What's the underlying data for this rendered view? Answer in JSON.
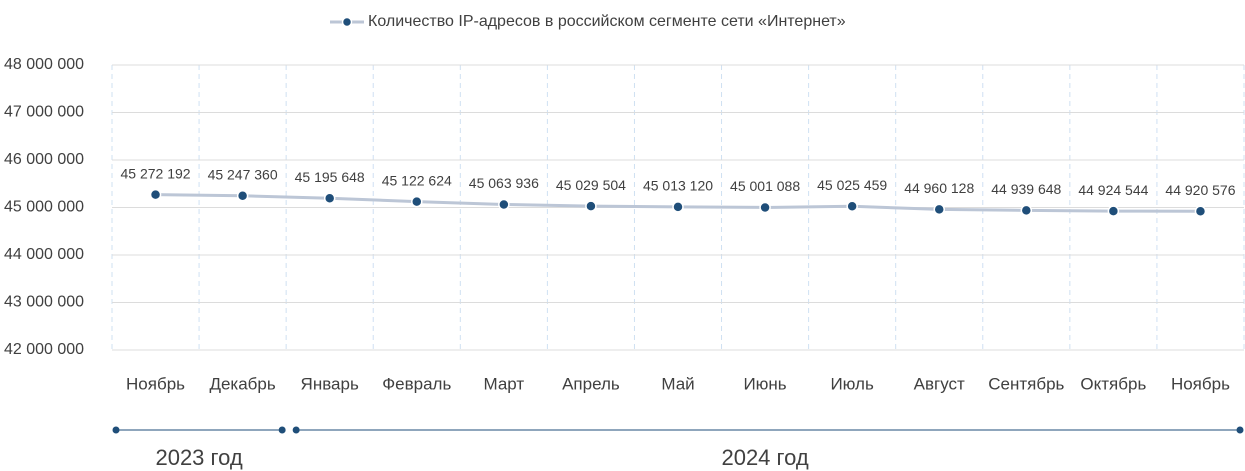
{
  "chart_data": {
    "type": "line",
    "categories": [
      "Ноябрь",
      "Декабрь",
      "Январь",
      "Февраль",
      "Март",
      "Апрель",
      "Май",
      "Июнь",
      "Июль",
      "Август",
      "Сентябрь",
      "Октябрь",
      "Ноябрь"
    ],
    "series": [
      {
        "name": "Количество IP-адресов в российском сегменте сети «Интернет»",
        "color": "#1f4e79",
        "line_color": "#bcc6d6",
        "values": [
          45272192,
          45247360,
          45195648,
          45122624,
          45063936,
          45029504,
          45013120,
          45001088,
          45025459,
          44960128,
          44939648,
          44924544,
          44920576
        ],
        "value_labels": [
          "45 272 192",
          "45 247 360",
          "45 195 648",
          "45 122 624",
          "45 063 936",
          "45 029 504",
          "45 013 120",
          "45 001 088",
          "45 025 459",
          "44 960 128",
          "44 939 648",
          "44 924 544",
          "44 920 576"
        ]
      }
    ],
    "ylim": [
      42000000,
      48000000
    ],
    "yticks": [
      {
        "value": 42000000,
        "label": "42 000 000"
      },
      {
        "value": 43000000,
        "label": "43 000 000"
      },
      {
        "value": 44000000,
        "label": "44 000 000"
      },
      {
        "value": 45000000,
        "label": "45 000 000"
      },
      {
        "value": 46000000,
        "label": "46 000 000"
      },
      {
        "value": 47000000,
        "label": "47 000 000"
      },
      {
        "value": 48000000,
        "label": "48 000 000"
      }
    ],
    "grid": true,
    "legend": "top",
    "groups": [
      {
        "label": "2023 год",
        "span": 2
      },
      {
        "label": "2024 год",
        "span": 11
      }
    ]
  }
}
